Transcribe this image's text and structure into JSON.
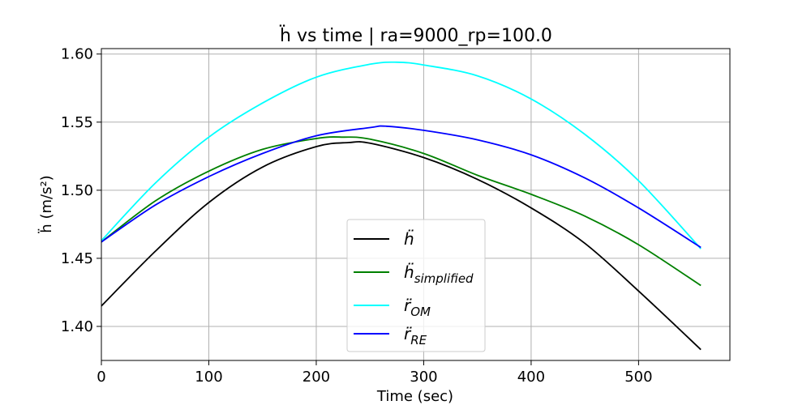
{
  "chart_data": {
    "type": "line",
    "title": "ḧ vs time | ra=9000_rp=100.0",
    "xlabel": "Time (sec)",
    "ylabel": "ḧ (m/s²)",
    "xlim": [
      0,
      585
    ],
    "ylim": [
      1.375,
      1.604
    ],
    "xticks": [
      0,
      100,
      200,
      300,
      400,
      500
    ],
    "xtick_labels": [
      "0",
      "100",
      "200",
      "300",
      "400",
      "500"
    ],
    "yticks": [
      1.4,
      1.45,
      1.5,
      1.55,
      1.6
    ],
    "ytick_labels": [
      "1.40",
      "1.45",
      "1.50",
      "1.55",
      "1.60"
    ],
    "grid": true,
    "legend_position": "lower-center",
    "series": [
      {
        "name": "ḧ",
        "color": "#000000",
        "x": [
          0,
          50,
          100,
          150,
          200,
          230,
          250,
          300,
          350,
          400,
          450,
          500,
          558
        ],
        "y": [
          1.415,
          1.455,
          1.491,
          1.517,
          1.532,
          1.535,
          1.5345,
          1.524,
          1.508,
          1.487,
          1.461,
          1.426,
          1.383
        ]
      },
      {
        "name": "ḧsimplified",
        "label_main": "ḧ",
        "label_sub": "simplified",
        "color": "#008000",
        "x": [
          0,
          50,
          100,
          150,
          200,
          225,
          250,
          300,
          350,
          400,
          450,
          500,
          558
        ],
        "y": [
          1.462,
          1.492,
          1.514,
          1.53,
          1.538,
          1.539,
          1.5375,
          1.527,
          1.511,
          1.497,
          1.481,
          1.46,
          1.43
        ]
      },
      {
        "name": "r̈OM",
        "label_main": "r̈",
        "label_sub": "OM",
        "color": "#00ffff",
        "x": [
          0,
          50,
          100,
          150,
          200,
          250,
          275,
          300,
          350,
          400,
          450,
          500,
          558
        ],
        "y": [
          1.463,
          1.505,
          1.539,
          1.564,
          1.583,
          1.5925,
          1.594,
          1.592,
          1.584,
          1.567,
          1.541,
          1.507,
          1.457
        ]
      },
      {
        "name": "r̈RE",
        "label_main": "r̈",
        "label_sub": "RE",
        "color": "#0000ff",
        "x": [
          0,
          50,
          100,
          150,
          200,
          250,
          265,
          300,
          350,
          400,
          450,
          500,
          558
        ],
        "y": [
          1.462,
          1.489,
          1.51,
          1.527,
          1.54,
          1.546,
          1.547,
          1.544,
          1.537,
          1.526,
          1.509,
          1.487,
          1.458
        ]
      }
    ]
  }
}
